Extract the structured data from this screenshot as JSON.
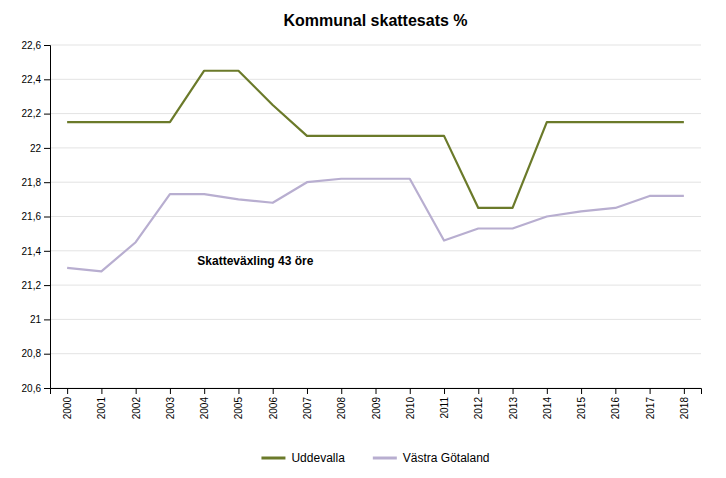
{
  "chart_data": {
    "type": "line",
    "title": "Kommunal skattesats %",
    "x": [
      2000,
      2001,
      2002,
      2003,
      2004,
      2005,
      2006,
      2007,
      2008,
      2009,
      2010,
      2011,
      2012,
      2013,
      2014,
      2015,
      2016,
      2017,
      2018
    ],
    "series": [
      {
        "name": "Uddevalla",
        "color": "#6b7a2a",
        "values": [
          22.15,
          22.15,
          22.15,
          22.15,
          22.45,
          22.45,
          22.25,
          22.07,
          22.07,
          22.07,
          22.07,
          22.07,
          21.65,
          21.65,
          22.15,
          22.15,
          22.15,
          22.15,
          22.15
        ]
      },
      {
        "name": "Västra Götaland",
        "color": "#b8aed0",
        "values": [
          21.3,
          21.28,
          21.45,
          21.73,
          21.73,
          21.7,
          21.68,
          21.8,
          21.82,
          21.82,
          21.82,
          21.46,
          21.53,
          21.53,
          21.6,
          21.63,
          21.65,
          21.72,
          21.72
        ]
      }
    ],
    "xlim": [
      1999.5,
      2018.5
    ],
    "xticks": [
      2000,
      2001,
      2002,
      2003,
      2004,
      2005,
      2006,
      2007,
      2008,
      2009,
      2010,
      2011,
      2012,
      2013,
      2014,
      2015,
      2016,
      2017,
      2018
    ],
    "ylim": [
      20.6,
      22.6
    ],
    "yticks": [
      {
        "value": 20.6,
        "label": "20,6"
      },
      {
        "value": 20.8,
        "label": "20,8"
      },
      21,
      {
        "value": 21.2,
        "label": "21,2"
      },
      {
        "value": 21.4,
        "label": "21,4"
      },
      {
        "value": 21.6,
        "label": "21,6"
      },
      {
        "value": 21.8,
        "label": "21,8"
      },
      22,
      {
        "value": 22.2,
        "label": "22,2"
      },
      {
        "value": 22.4,
        "label": "22,4"
      },
      {
        "value": 22.6,
        "label": "22,6"
      }
    ],
    "annotations": [
      {
        "text": "Skatteväxling 43 öre",
        "x": 2003.8,
        "y": 21.32
      }
    ],
    "grid": true,
    "legend": "bottom"
  }
}
